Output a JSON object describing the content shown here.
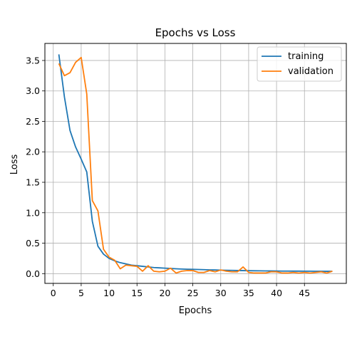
{
  "chart_data": {
    "type": "line",
    "title": "Epochs vs Loss",
    "xlabel": "Epochs",
    "ylabel": "Loss",
    "xlim": [
      -1.5,
      52.5
    ],
    "ylim": [
      -0.16,
      3.78
    ],
    "xticks": [
      0,
      5,
      10,
      15,
      20,
      25,
      30,
      35,
      40,
      45
    ],
    "yticks": [
      0.0,
      0.5,
      1.0,
      1.5,
      2.0,
      2.5,
      3.0,
      3.5
    ],
    "grid": true,
    "legend_position": "top-right",
    "series": [
      {
        "name": "training",
        "color": "#1f77b4",
        "x": [
          1,
          2,
          3,
          4,
          5,
          6,
          7,
          8,
          9,
          10,
          11,
          12,
          13,
          14,
          15,
          16,
          17,
          18,
          19,
          20,
          21,
          22,
          23,
          24,
          25,
          26,
          27,
          28,
          29,
          30,
          31,
          32,
          33,
          34,
          35,
          36,
          37,
          38,
          39,
          40,
          41,
          42,
          43,
          44,
          45,
          46,
          47,
          48,
          49,
          50
        ],
        "values": [
          3.6,
          2.9,
          2.35,
          2.08,
          1.88,
          1.67,
          0.86,
          0.45,
          0.32,
          0.25,
          0.21,
          0.18,
          0.16,
          0.14,
          0.13,
          0.12,
          0.11,
          0.1,
          0.095,
          0.09,
          0.085,
          0.08,
          0.075,
          0.072,
          0.07,
          0.068,
          0.065,
          0.062,
          0.06,
          0.058,
          0.055,
          0.053,
          0.051,
          0.05,
          0.048,
          0.047,
          0.046,
          0.045,
          0.044,
          0.043,
          0.042,
          0.042,
          0.041,
          0.041,
          0.04,
          0.04,
          0.039,
          0.039,
          0.038,
          0.038
        ]
      },
      {
        "name": "validation",
        "color": "#ff7f0e",
        "x": [
          1,
          2,
          3,
          4,
          5,
          6,
          7,
          8,
          9,
          10,
          11,
          12,
          13,
          14,
          15,
          16,
          17,
          18,
          19,
          20,
          21,
          22,
          23,
          24,
          25,
          26,
          27,
          28,
          29,
          30,
          31,
          32,
          33,
          34,
          35,
          36,
          37,
          38,
          39,
          40,
          41,
          42,
          43,
          44,
          45,
          46,
          47,
          48,
          49,
          50
        ],
        "values": [
          3.45,
          3.25,
          3.3,
          3.47,
          3.55,
          2.95,
          1.2,
          1.03,
          0.4,
          0.27,
          0.22,
          0.08,
          0.14,
          0.13,
          0.12,
          0.04,
          0.13,
          0.04,
          0.03,
          0.04,
          0.09,
          0.01,
          0.04,
          0.05,
          0.05,
          0.02,
          0.02,
          0.05,
          0.03,
          0.06,
          0.04,
          0.03,
          0.03,
          0.11,
          0.02,
          0.01,
          0.01,
          0.01,
          0.03,
          0.03,
          0.01,
          0.01,
          0.02,
          0.01,
          0.02,
          0.01,
          0.02,
          0.03,
          0.01,
          0.04
        ]
      }
    ]
  }
}
